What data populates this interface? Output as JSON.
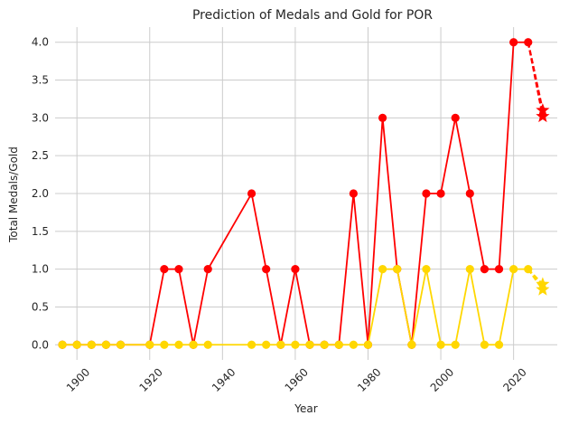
{
  "chart_data": {
    "type": "line",
    "title": "Prediction of Medals and Gold for POR",
    "xlabel": "Year",
    "ylabel": "Total Medals/Gold",
    "xlim": [
      1894,
      2032
    ],
    "ylim": [
      -0.2,
      4.2
    ],
    "xticks": [
      1900,
      1920,
      1940,
      1960,
      1980,
      2000,
      2020
    ],
    "yticks": [
      0.0,
      0.5,
      1.0,
      1.5,
      2.0,
      2.5,
      3.0,
      3.5,
      4.0
    ],
    "ytick_labels": [
      "0.0",
      "0.5",
      "1.0",
      "1.5",
      "2.0",
      "2.5",
      "3.0",
      "3.5",
      "4.0"
    ],
    "grid": true,
    "x": [
      1896,
      1900,
      1904,
      1908,
      1912,
      1920,
      1924,
      1928,
      1932,
      1936,
      1948,
      1952,
      1956,
      1960,
      1964,
      1968,
      1972,
      1976,
      1980,
      1984,
      1988,
      1992,
      1996,
      2000,
      2004,
      2008,
      2012,
      2016,
      2020,
      2024
    ],
    "series": [
      {
        "color": "#ff0000",
        "values": [
          0,
          0,
          0,
          0,
          0,
          0,
          1,
          1,
          0,
          1,
          2,
          1,
          0,
          1,
          0,
          0,
          0,
          2,
          0,
          3,
          1,
          0,
          2,
          2,
          3,
          2,
          1,
          1,
          4,
          4
        ],
        "prediction": {
          "from": [
            2024,
            4
          ],
          "to": [
            [
              2028,
              3.1
            ],
            [
              2028,
              3.02
            ]
          ]
        }
      },
      {
        "color": "#ffd700",
        "values": [
          0,
          0,
          0,
          0,
          0,
          0,
          0,
          0,
          0,
          0,
          0,
          0,
          0,
          0,
          0,
          0,
          0,
          0,
          0,
          1,
          1,
          0,
          1,
          0,
          0,
          1,
          0,
          0,
          1,
          1
        ],
        "prediction": {
          "from": [
            2024,
            1
          ],
          "to": [
            [
              2028,
              0.8
            ],
            [
              2028,
              0.73
            ]
          ]
        }
      }
    ]
  }
}
